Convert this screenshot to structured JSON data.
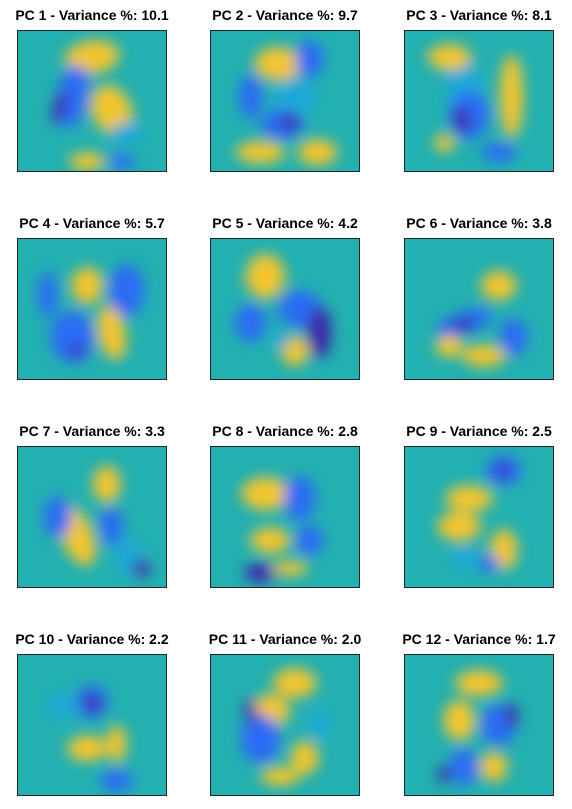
{
  "chart_data": {
    "type": "heatmap",
    "layout_grid": "4 rows x 3 columns",
    "colormap": [
      "#3E26A8",
      "#2C6CF4",
      "#1AA8D8",
      "#31C1AA",
      "#A8BF4A",
      "#F3C52E",
      "#F9FB15"
    ],
    "background_color": "#23B0B0",
    "panels": [
      {
        "title": "PC 1 - Variance %: 10.1",
        "pc": 1,
        "variance_percent": 10.1
      },
      {
        "title": "PC 2 - Variance %: 9.7",
        "pc": 2,
        "variance_percent": 9.7
      },
      {
        "title": "PC 3 - Variance %: 8.1",
        "pc": 3,
        "variance_percent": 8.1
      },
      {
        "title": "PC 4 - Variance %: 5.7",
        "pc": 4,
        "variance_percent": 5.7
      },
      {
        "title": "PC 5 - Variance %: 4.2",
        "pc": 5,
        "variance_percent": 4.2
      },
      {
        "title": "PC 6 - Variance %: 3.8",
        "pc": 6,
        "variance_percent": 3.8
      },
      {
        "title": "PC 7 - Variance %: 3.3",
        "pc": 7,
        "variance_percent": 3.3
      },
      {
        "title": "PC 8 - Variance %: 2.8",
        "pc": 8,
        "variance_percent": 2.8
      },
      {
        "title": "PC 9 - Variance %: 2.5",
        "pc": 9,
        "variance_percent": 2.5
      },
      {
        "title": "PC 10 - Variance %: 2.2",
        "pc": 10,
        "variance_percent": 2.2
      },
      {
        "title": "PC 11 - Variance %: 2.0",
        "pc": 11,
        "variance_percent": 2.0
      },
      {
        "title": "PC 12 - Variance %: 1.7",
        "pc": 12,
        "variance_percent": 1.7
      }
    ]
  }
}
